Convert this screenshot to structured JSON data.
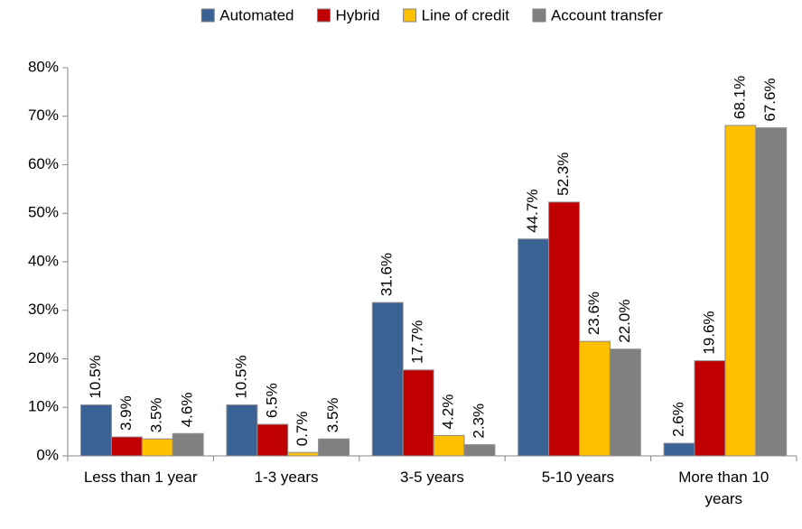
{
  "chart_data": {
    "type": "bar",
    "categories": [
      "Less than 1 year",
      "1-3 years",
      "3-5 years",
      "5-10 years",
      "More than 10 years"
    ],
    "series": [
      {
        "name": "Automated",
        "color": "#3b6294",
        "values": [
          10.5,
          10.5,
          31.6,
          44.7,
          2.6
        ],
        "value_labels": [
          "10.5%",
          "10.5%",
          "31.6%",
          "44.7%",
          "2.6%"
        ]
      },
      {
        "name": "Hybrid",
        "color": "#c00000",
        "values": [
          3.9,
          6.5,
          17.7,
          52.3,
          19.6
        ],
        "value_labels": [
          "3.9%",
          "6.5%",
          "17.7%",
          "52.3%",
          "19.6%"
        ]
      },
      {
        "name": "Line of credit",
        "color": "#ffc000",
        "values": [
          3.5,
          0.7,
          4.2,
          23.6,
          68.1
        ],
        "value_labels": [
          "3.5%",
          "0.7%",
          "4.2%",
          "23.6%",
          "68.1%"
        ]
      },
      {
        "name": "Account transfer",
        "color": "#808080",
        "values": [
          4.6,
          3.5,
          2.3,
          22.0,
          67.6
        ],
        "value_labels": [
          "4.6%",
          "3.5%",
          "2.3%",
          "22.0%",
          "67.6%"
        ]
      }
    ],
    "ylim": [
      0,
      80
    ],
    "yticks": [
      {
        "value": 0,
        "label": "0%"
      },
      {
        "value": 10,
        "label": "10%"
      },
      {
        "value": 20,
        "label": "20%"
      },
      {
        "value": 30,
        "label": "30%"
      },
      {
        "value": 40,
        "label": "40%"
      },
      {
        "value": 50,
        "label": "50%"
      },
      {
        "value": 60,
        "label": "60%"
      },
      {
        "value": 70,
        "label": "70%"
      },
      {
        "value": 80,
        "label": "80%"
      }
    ],
    "legend": "top",
    "grid": false
  }
}
